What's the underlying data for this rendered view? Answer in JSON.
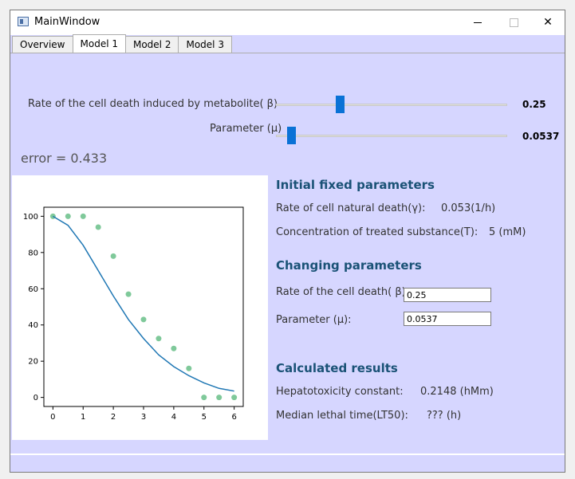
{
  "window": {
    "title": "MainWindow"
  },
  "tabs": [
    {
      "label": "Overview",
      "active": false
    },
    {
      "label": "Model 1",
      "active": true
    },
    {
      "label": "Model 2",
      "active": false
    },
    {
      "label": "Model 3",
      "active": false
    }
  ],
  "sliders": {
    "beta": {
      "label": "Rate of the cell death induced by metabolite( β)",
      "value": "0.25",
      "fraction": 0.27
    },
    "mu": {
      "label": "Parameter (μ)",
      "value": "0.0537",
      "fraction": 0.05
    }
  },
  "error_text": "error = 0.433",
  "initial": {
    "header": "Initial fixed parameters",
    "natural_death_label": "Rate of cell natural death(γ):",
    "natural_death_value": "0.053(1/h)",
    "concentration_label": "Concentration of treated substance(T):",
    "concentration_value": "5 (mM)"
  },
  "changing": {
    "header": "Changing parameters",
    "beta_label": "Rate of the cell death( β):",
    "beta_value": "0.25",
    "mu_label": "Parameter (μ):",
    "mu_value": "0.0537"
  },
  "results": {
    "header": "Calculated results",
    "hepatotoxicity_label": "Hepatotoxicity constant:",
    "hepatotoxicity_value": "0.2148 (hMm)",
    "lt50_label": "Median lethal time(LT50):",
    "lt50_value": "??? (h)"
  },
  "colors": {
    "line": "#1f77b4",
    "points": "#7fc99a",
    "accent": "#0a72d6",
    "header": "#1a5276",
    "background": "#d6d6ff"
  },
  "chart_data": {
    "type": "scatter",
    "title": "",
    "xlabel": "",
    "ylabel": "",
    "xlim": [
      -0.3,
      6.3
    ],
    "ylim": [
      -5,
      105
    ],
    "xticks": [
      0,
      1,
      2,
      3,
      4,
      5,
      6
    ],
    "yticks": [
      0,
      20,
      40,
      60,
      80,
      100
    ],
    "series": [
      {
        "type": "scatter",
        "x": [
          0,
          0.5,
          1,
          1.5,
          2,
          2.5,
          3,
          3.5,
          4,
          4.5,
          5,
          5.5,
          6
        ],
        "y": [
          100,
          100,
          100,
          94,
          78,
          57,
          43,
          32.5,
          27,
          16,
          0,
          0,
          0
        ]
      },
      {
        "type": "line",
        "x": [
          0,
          0.5,
          1,
          1.5,
          2,
          2.5,
          3,
          3.5,
          4,
          4.5,
          5,
          5.5,
          6
        ],
        "y": [
          100,
          95,
          84,
          70,
          56,
          43,
          32.5,
          23.5,
          17,
          12,
          8,
          5,
          3.5
        ]
      }
    ]
  }
}
